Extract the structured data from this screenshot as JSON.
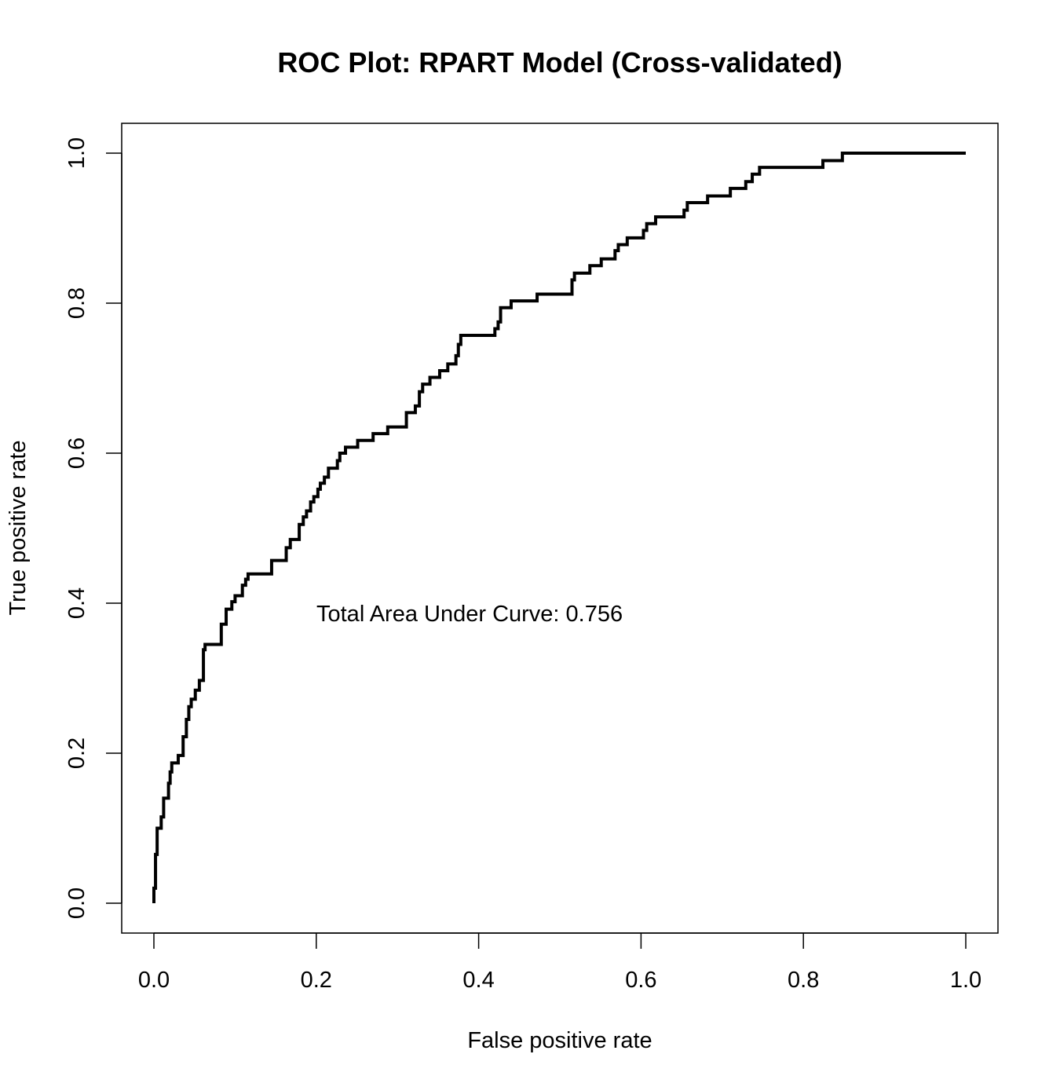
{
  "chart_data": {
    "type": "line",
    "title": "ROC Plot: RPART Model (Cross-validated)",
    "xlabel": "False positive rate",
    "ylabel": "True positive rate",
    "xlim": [
      0,
      1
    ],
    "ylim": [
      0,
      1
    ],
    "x_ticks": [
      "0.0",
      "0.2",
      "0.4",
      "0.6",
      "0.8",
      "1.0"
    ],
    "y_ticks": [
      "0.0",
      "0.2",
      "0.4",
      "0.6",
      "0.8",
      "1.0"
    ],
    "grid": false,
    "annotation": "Total Area Under Curve: 0.756",
    "series": [
      {
        "line_color": "#000000",
        "points": [
          [
            0.0,
            0.0
          ],
          [
            0.0,
            0.02
          ],
          [
            0.002,
            0.02
          ],
          [
            0.002,
            0.065
          ],
          [
            0.004,
            0.065
          ],
          [
            0.004,
            0.1
          ],
          [
            0.009,
            0.1
          ],
          [
            0.009,
            0.115
          ],
          [
            0.012,
            0.115
          ],
          [
            0.012,
            0.14
          ],
          [
            0.018,
            0.14
          ],
          [
            0.018,
            0.16
          ],
          [
            0.02,
            0.16
          ],
          [
            0.02,
            0.175
          ],
          [
            0.022,
            0.175
          ],
          [
            0.022,
            0.187
          ],
          [
            0.03,
            0.187
          ],
          [
            0.03,
            0.197
          ],
          [
            0.036,
            0.197
          ],
          [
            0.036,
            0.222
          ],
          [
            0.04,
            0.222
          ],
          [
            0.04,
            0.245
          ],
          [
            0.043,
            0.245
          ],
          [
            0.043,
            0.262
          ],
          [
            0.046,
            0.262
          ],
          [
            0.046,
            0.272
          ],
          [
            0.051,
            0.272
          ],
          [
            0.051,
            0.284
          ],
          [
            0.056,
            0.284
          ],
          [
            0.056,
            0.297
          ],
          [
            0.061,
            0.297
          ],
          [
            0.061,
            0.338
          ],
          [
            0.063,
            0.338
          ],
          [
            0.063,
            0.345
          ],
          [
            0.083,
            0.345
          ],
          [
            0.083,
            0.372
          ],
          [
            0.089,
            0.372
          ],
          [
            0.089,
            0.392
          ],
          [
            0.096,
            0.392
          ],
          [
            0.096,
            0.402
          ],
          [
            0.1,
            0.402
          ],
          [
            0.1,
            0.41
          ],
          [
            0.109,
            0.41
          ],
          [
            0.109,
            0.424
          ],
          [
            0.113,
            0.424
          ],
          [
            0.113,
            0.432
          ],
          [
            0.116,
            0.432
          ],
          [
            0.116,
            0.439
          ],
          [
            0.145,
            0.439
          ],
          [
            0.145,
            0.457
          ],
          [
            0.163,
            0.457
          ],
          [
            0.163,
            0.474
          ],
          [
            0.168,
            0.474
          ],
          [
            0.168,
            0.485
          ],
          [
            0.179,
            0.485
          ],
          [
            0.179,
            0.505
          ],
          [
            0.184,
            0.505
          ],
          [
            0.184,
            0.515
          ],
          [
            0.188,
            0.515
          ],
          [
            0.188,
            0.523
          ],
          [
            0.193,
            0.523
          ],
          [
            0.193,
            0.535
          ],
          [
            0.197,
            0.535
          ],
          [
            0.197,
            0.542
          ],
          [
            0.202,
            0.542
          ],
          [
            0.202,
            0.552
          ],
          [
            0.205,
            0.552
          ],
          [
            0.205,
            0.56
          ],
          [
            0.21,
            0.56
          ],
          [
            0.21,
            0.568
          ],
          [
            0.215,
            0.568
          ],
          [
            0.215,
            0.58
          ],
          [
            0.226,
            0.58
          ],
          [
            0.226,
            0.59
          ],
          [
            0.229,
            0.59
          ],
          [
            0.229,
            0.6
          ],
          [
            0.236,
            0.6
          ],
          [
            0.236,
            0.608
          ],
          [
            0.251,
            0.608
          ],
          [
            0.251,
            0.617
          ],
          [
            0.27,
            0.617
          ],
          [
            0.27,
            0.626
          ],
          [
            0.288,
            0.626
          ],
          [
            0.288,
            0.635
          ],
          [
            0.311,
            0.635
          ],
          [
            0.311,
            0.654
          ],
          [
            0.322,
            0.654
          ],
          [
            0.322,
            0.663
          ],
          [
            0.327,
            0.663
          ],
          [
            0.327,
            0.682
          ],
          [
            0.331,
            0.682
          ],
          [
            0.331,
            0.692
          ],
          [
            0.34,
            0.692
          ],
          [
            0.34,
            0.701
          ],
          [
            0.352,
            0.701
          ],
          [
            0.352,
            0.71
          ],
          [
            0.362,
            0.71
          ],
          [
            0.362,
            0.719
          ],
          [
            0.372,
            0.719
          ],
          [
            0.372,
            0.73
          ],
          [
            0.375,
            0.73
          ],
          [
            0.375,
            0.745
          ],
          [
            0.378,
            0.745
          ],
          [
            0.378,
            0.757
          ],
          [
            0.42,
            0.757
          ],
          [
            0.42,
            0.766
          ],
          [
            0.424,
            0.766
          ],
          [
            0.424,
            0.775
          ],
          [
            0.427,
            0.775
          ],
          [
            0.427,
            0.794
          ],
          [
            0.44,
            0.794
          ],
          [
            0.44,
            0.803
          ],
          [
            0.472,
            0.803
          ],
          [
            0.472,
            0.812
          ],
          [
            0.515,
            0.812
          ],
          [
            0.515,
            0.831
          ],
          [
            0.518,
            0.831
          ],
          [
            0.518,
            0.84
          ],
          [
            0.537,
            0.84
          ],
          [
            0.537,
            0.85
          ],
          [
            0.551,
            0.85
          ],
          [
            0.551,
            0.859
          ],
          [
            0.568,
            0.859
          ],
          [
            0.568,
            0.87
          ],
          [
            0.572,
            0.87
          ],
          [
            0.572,
            0.878
          ],
          [
            0.583,
            0.878
          ],
          [
            0.583,
            0.887
          ],
          [
            0.603,
            0.887
          ],
          [
            0.603,
            0.897
          ],
          [
            0.607,
            0.897
          ],
          [
            0.607,
            0.906
          ],
          [
            0.618,
            0.906
          ],
          [
            0.618,
            0.915
          ],
          [
            0.653,
            0.915
          ],
          [
            0.653,
            0.924
          ],
          [
            0.657,
            0.924
          ],
          [
            0.657,
            0.934
          ],
          [
            0.682,
            0.934
          ],
          [
            0.682,
            0.943
          ],
          [
            0.71,
            0.943
          ],
          [
            0.71,
            0.953
          ],
          [
            0.729,
            0.953
          ],
          [
            0.729,
            0.962
          ],
          [
            0.737,
            0.962
          ],
          [
            0.737,
            0.972
          ],
          [
            0.746,
            0.972
          ],
          [
            0.746,
            0.981
          ],
          [
            0.824,
            0.981
          ],
          [
            0.824,
            0.99
          ],
          [
            0.848,
            0.99
          ],
          [
            0.848,
            1.0
          ],
          [
            1.0,
            1.0
          ]
        ]
      }
    ]
  }
}
